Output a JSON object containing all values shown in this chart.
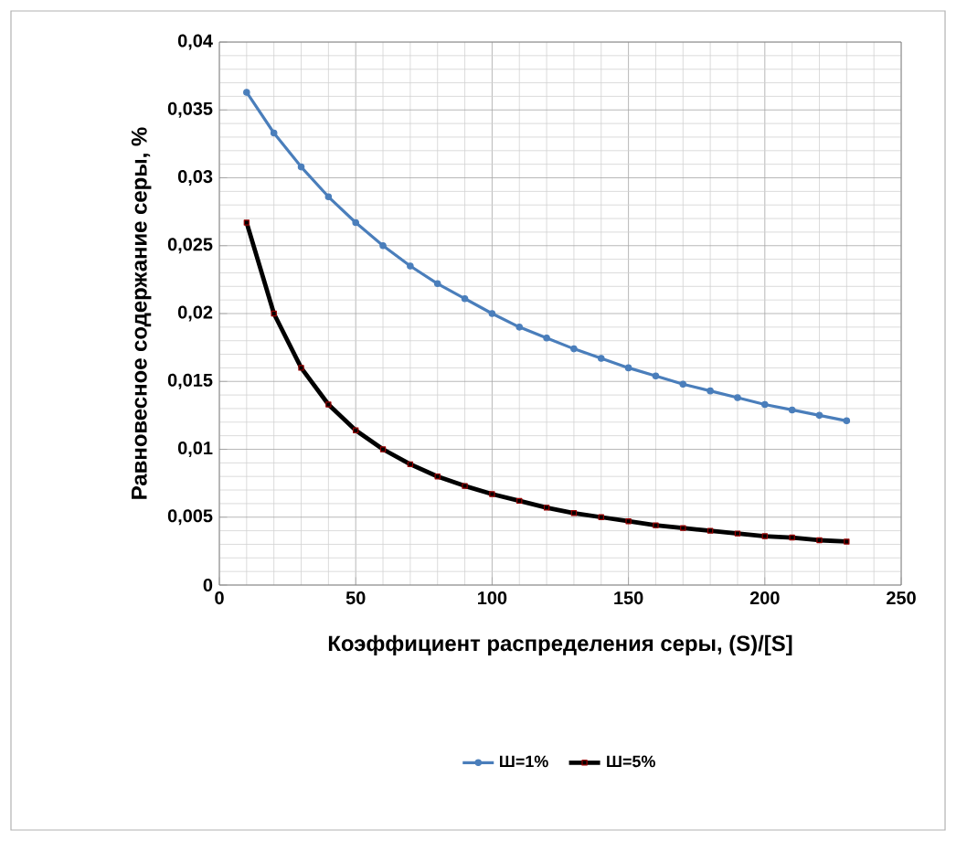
{
  "chart_data": {
    "type": "line",
    "xlabel": "Коэффициент распределения серы, (S)/[S]",
    "ylabel": "Равновесное содержание серы, %",
    "x": [
      10,
      20,
      30,
      40,
      50,
      60,
      70,
      80,
      90,
      100,
      110,
      120,
      130,
      140,
      150,
      160,
      170,
      180,
      190,
      200,
      210,
      220,
      230
    ],
    "series": [
      {
        "name": "Ш=1%",
        "color": "#4a7ebb",
        "marker": "circle",
        "values": [
          0.0363,
          0.0333,
          0.0308,
          0.0286,
          0.0267,
          0.025,
          0.0235,
          0.0222,
          0.0211,
          0.02,
          0.019,
          0.0182,
          0.0174,
          0.0167,
          0.016,
          0.0154,
          0.0148,
          0.0143,
          0.0138,
          0.0133,
          0.0129,
          0.0125,
          0.0121
        ]
      },
      {
        "name": "Ш=5%",
        "color": "#000000",
        "marker": "square",
        "values": [
          0.0267,
          0.02,
          0.016,
          0.0133,
          0.0114,
          0.01,
          0.0089,
          0.008,
          0.0073,
          0.0067,
          0.0062,
          0.0057,
          0.0053,
          0.005,
          0.0047,
          0.0044,
          0.0042,
          0.004,
          0.0038,
          0.0036,
          0.0035,
          0.0033,
          0.0032
        ]
      }
    ],
    "xlim": [
      0,
      250
    ],
    "xticks": [
      0,
      50,
      100,
      150,
      200,
      250
    ],
    "ylim": [
      0,
      0.04
    ],
    "yticks": [
      {
        "value": 0,
        "label": "0"
      },
      {
        "value": 0.005,
        "label": "0,005"
      },
      {
        "value": 0.01,
        "label": "0,01"
      },
      {
        "value": 0.015,
        "label": "0,015"
      },
      {
        "value": 0.02,
        "label": "0,02"
      },
      {
        "value": 0.025,
        "label": "0,025"
      },
      {
        "value": 0.03,
        "label": "0,03"
      },
      {
        "value": 0.035,
        "label": "0,035"
      },
      {
        "value": 0.04,
        "label": "0,04"
      }
    ],
    "grid": true,
    "legend": "bottom"
  }
}
